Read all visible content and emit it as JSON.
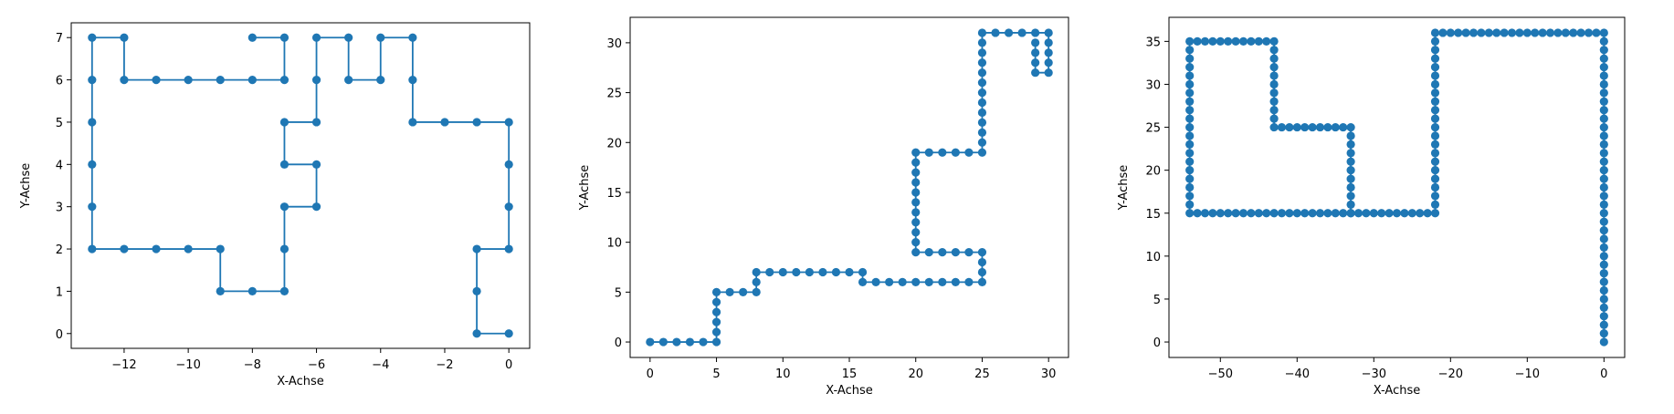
{
  "figure": {
    "line_color": "#1f77b4",
    "marker_color": "#1f77b4",
    "background": "#ffffff"
  },
  "chart_data": [
    {
      "type": "line",
      "markers": true,
      "title": "",
      "xlabel": "X-Achse",
      "ylabel": "Y-Achse",
      "xlim": [
        -13.65,
        0.65
      ],
      "ylim": [
        -0.35,
        7.35
      ],
      "xticks": [
        -12,
        -10,
        -8,
        -6,
        -4,
        -2,
        0
      ],
      "yticks": [
        0,
        1,
        2,
        3,
        4,
        5,
        6,
        7
      ],
      "grid": false,
      "series": [
        {
          "color": "#1f77b4",
          "points": [
            [
              0,
              0
            ],
            [
              -1,
              0
            ],
            [
              -1,
              1
            ],
            [
              -1,
              2
            ],
            [
              0,
              2
            ],
            [
              0,
              3
            ],
            [
              0,
              4
            ],
            [
              0,
              5
            ],
            [
              -1,
              5
            ],
            [
              -2,
              5
            ],
            [
              -3,
              5
            ],
            [
              -3,
              6
            ],
            [
              -3,
              7
            ],
            [
              -4,
              7
            ],
            [
              -4,
              6
            ],
            [
              -5,
              6
            ],
            [
              -5,
              7
            ],
            [
              -6,
              7
            ],
            [
              -6,
              6
            ],
            [
              -6,
              5
            ],
            [
              -7,
              5
            ],
            [
              -7,
              4
            ],
            [
              -6,
              4
            ],
            [
              -6,
              3
            ],
            [
              -7,
              3
            ],
            [
              -7,
              2
            ],
            [
              -7,
              1
            ],
            [
              -8,
              1
            ],
            [
              -9,
              1
            ],
            [
              -9,
              2
            ],
            [
              -10,
              2
            ],
            [
              -11,
              2
            ],
            [
              -12,
              2
            ],
            [
              -13,
              2
            ],
            [
              -13,
              3
            ],
            [
              -13,
              4
            ],
            [
              -13,
              5
            ],
            [
              -13,
              6
            ],
            [
              -13,
              7
            ],
            [
              -12,
              7
            ],
            [
              -12,
              6
            ],
            [
              -11,
              6
            ],
            [
              -10,
              6
            ],
            [
              -9,
              6
            ],
            [
              -8,
              6
            ],
            [
              -7,
              6
            ],
            [
              -7,
              7
            ],
            [
              -8,
              7
            ]
          ]
        }
      ]
    },
    {
      "type": "line",
      "markers": true,
      "title": "",
      "xlabel": "X-Achse",
      "ylabel": "Y-Achse",
      "xlim": [
        -1.5,
        31.5
      ],
      "ylim": [
        -1.55,
        32.55
      ],
      "xticks": [
        0,
        5,
        10,
        15,
        20,
        25,
        30
      ],
      "yticks": [
        0,
        5,
        10,
        15,
        20,
        25,
        30
      ],
      "grid": false,
      "series": [
        {
          "color": "#1f77b4",
          "points": [
            [
              0,
              0
            ],
            [
              1,
              0
            ],
            [
              2,
              0
            ],
            [
              3,
              0
            ],
            [
              4,
              0
            ],
            [
              5,
              0
            ],
            [
              5,
              1
            ],
            [
              5,
              2
            ],
            [
              5,
              3
            ],
            [
              5,
              4
            ],
            [
              5,
              5
            ],
            [
              6,
              5
            ],
            [
              7,
              5
            ],
            [
              8,
              5
            ],
            [
              8,
              6
            ],
            [
              8,
              7
            ],
            [
              9,
              7
            ],
            [
              10,
              7
            ],
            [
              11,
              7
            ],
            [
              12,
              7
            ],
            [
              13,
              7
            ],
            [
              14,
              7
            ],
            [
              15,
              7
            ],
            [
              16,
              7
            ],
            [
              16,
              6
            ],
            [
              17,
              6
            ],
            [
              18,
              6
            ],
            [
              19,
              6
            ],
            [
              20,
              6
            ],
            [
              21,
              6
            ],
            [
              22,
              6
            ],
            [
              23,
              6
            ],
            [
              24,
              6
            ],
            [
              25,
              6
            ],
            [
              25,
              7
            ],
            [
              25,
              8
            ],
            [
              25,
              9
            ],
            [
              24,
              9
            ],
            [
              23,
              9
            ],
            [
              22,
              9
            ],
            [
              21,
              9
            ],
            [
              20,
              9
            ],
            [
              20,
              10
            ],
            [
              20,
              11
            ],
            [
              20,
              12
            ],
            [
              20,
              13
            ],
            [
              20,
              14
            ],
            [
              20,
              15
            ],
            [
              20,
              16
            ],
            [
              20,
              17
            ],
            [
              20,
              18
            ],
            [
              20,
              19
            ],
            [
              21,
              19
            ],
            [
              22,
              19
            ],
            [
              23,
              19
            ],
            [
              24,
              19
            ],
            [
              25,
              19
            ],
            [
              25,
              20
            ],
            [
              25,
              21
            ],
            [
              25,
              22
            ],
            [
              25,
              23
            ],
            [
              25,
              24
            ],
            [
              25,
              25
            ],
            [
              25,
              26
            ],
            [
              25,
              27
            ],
            [
              25,
              28
            ],
            [
              25,
              29
            ],
            [
              25,
              30
            ],
            [
              25,
              31
            ],
            [
              26,
              31
            ],
            [
              27,
              31
            ],
            [
              28,
              31
            ],
            [
              29,
              31
            ],
            [
              30,
              31
            ],
            [
              30,
              30
            ],
            [
              30,
              29
            ],
            [
              30,
              28
            ],
            [
              30,
              27
            ],
            [
              29,
              27
            ],
            [
              29,
              28
            ],
            [
              29,
              29
            ],
            [
              29,
              30
            ]
          ]
        }
      ]
    },
    {
      "type": "line",
      "markers": true,
      "title": "",
      "xlabel": "X-Achse",
      "ylabel": "Y-Achse",
      "xlim": [
        -56.7,
        2.7
      ],
      "ylim": [
        -1.8,
        37.8
      ],
      "xticks": [
        -50,
        -40,
        -30,
        -20,
        -10,
        0
      ],
      "yticks": [
        0,
        5,
        10,
        15,
        20,
        25,
        30,
        35
      ],
      "grid": false,
      "series": [
        {
          "color": "#1f77b4",
          "path": [
            [
              0,
              0
            ],
            [
              0,
              36
            ],
            [
              -22,
              36
            ],
            [
              -22,
              15
            ],
            [
              -54,
              15
            ],
            [
              -54,
              35
            ],
            [
              -43,
              35
            ],
            [
              -43,
              25
            ],
            [
              -33,
              25
            ],
            [
              -33,
              15
            ]
          ]
        }
      ]
    }
  ]
}
